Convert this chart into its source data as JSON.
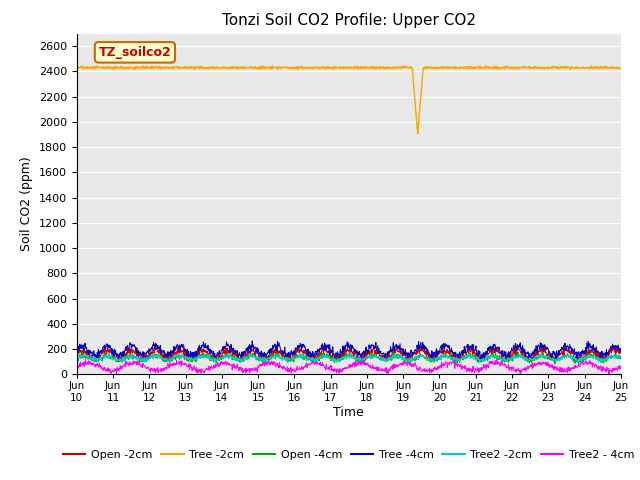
{
  "title": "Tonzi Soil CO2 Profile: Upper CO2",
  "ylabel": "Soil CO2 (ppm)",
  "xlabel": "Time",
  "ylim": [
    0,
    2700
  ],
  "yticks": [
    0,
    200,
    400,
    600,
    800,
    1000,
    1200,
    1400,
    1600,
    1800,
    2000,
    2200,
    2400,
    2600
  ],
  "background_color": "#e8e8e8",
  "legend_label": "TZ_soilco2",
  "legend_label_color": "#cc0000",
  "legend_box_edgecolor": "#cc6600",
  "legend_box_facecolor": "#ffffcc",
  "series": {
    "Open_2cm": {
      "color": "#cc0000",
      "label": "Open -2cm"
    },
    "Tree_2cm": {
      "color": "#ffa500",
      "label": "Tree -2cm"
    },
    "Open_4cm": {
      "color": "#00aa00",
      "label": "Open -4cm"
    },
    "Tree_4cm": {
      "color": "#0000cc",
      "label": "Tree -4cm"
    },
    "Tree2_2cm": {
      "color": "#00cccc",
      "label": "Tree2 -2cm"
    },
    "Tree2_4cm": {
      "color": "#ff00ff",
      "label": "Tree2 - 4cm"
    }
  },
  "xticklabels": [
    "Jun\n10",
    "Jun\n11",
    "Jun\n12",
    "Jun\n13",
    "Jun\n14",
    "Jun\n15",
    "Jun\n16",
    "Jun\n17",
    "Jun\n18",
    "Jun\n19",
    "Jun\n20",
    "Jun\n21",
    "Jun\n22",
    "Jun\n23",
    "Jun\n24",
    "Jun\n25"
  ],
  "n_points": 1440,
  "tree2cm_dip_day": 9.4,
  "tree2cm_dip_value": 1900
}
